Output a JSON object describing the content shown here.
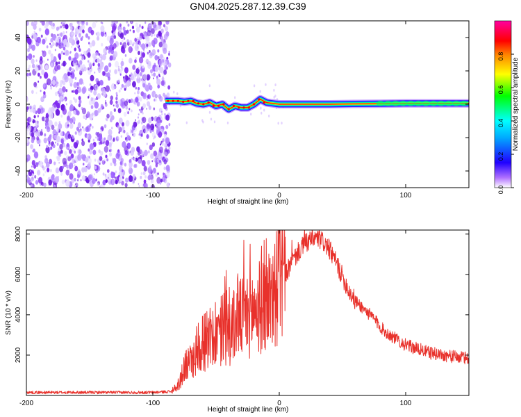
{
  "title": "GN04.2025.287.12.39.C39",
  "chart_data": [
    {
      "type": "heatmap",
      "name": "spectrogram",
      "xlabel": "Height of straight line (km)",
      "ylabel": "Frequency (Hz)",
      "xlim": [
        -200,
        150
      ],
      "ylim": [
        -50,
        50
      ],
      "xticks": [
        -200,
        -100,
        0,
        100
      ],
      "xtick_labels": [
        "-200",
        "-100",
        "0",
        "100"
      ],
      "yticks": [
        40,
        20,
        0,
        -20,
        -40
      ],
      "ytick_labels": [
        "40",
        "20",
        "0",
        "-20",
        "-40"
      ],
      "noise_region_x": [
        -200,
        -90
      ],
      "tone_region_x": [
        -90,
        150
      ],
      "tone_track": [
        [
          -90,
          2
        ],
        [
          -80,
          2
        ],
        [
          -75,
          1.5
        ],
        [
          -70,
          2
        ],
        [
          -65,
          0.5
        ],
        [
          -60,
          0
        ],
        [
          -55,
          1
        ],
        [
          -50,
          -1
        ],
        [
          -45,
          0
        ],
        [
          -40,
          -3
        ],
        [
          -35,
          -1
        ],
        [
          -30,
          -2
        ],
        [
          -25,
          -2
        ],
        [
          -20,
          0
        ],
        [
          -15,
          3
        ],
        [
          -10,
          1
        ],
        [
          -5,
          0.5
        ],
        [
          0,
          0
        ],
        [
          20,
          0
        ],
        [
          40,
          0
        ],
        [
          60,
          0.2
        ],
        [
          80,
          0.3
        ],
        [
          100,
          0.5
        ],
        [
          120,
          0.5
        ],
        [
          150,
          0.5
        ]
      ],
      "colorbar": {
        "label": "Normalized spectral amplitude",
        "range": [
          0,
          1
        ],
        "ticks": [
          0.0,
          0.2,
          0.4,
          0.6,
          0.8
        ],
        "tick_labels": [
          "0.0",
          "0.2",
          "0.4",
          "0.6",
          "0.8"
        ]
      }
    },
    {
      "type": "line",
      "name": "snr",
      "xlabel": "Height of straight line (km)",
      "ylabel": "SNR (10 * v/v)",
      "xlim": [
        -200,
        150
      ],
      "ylim": [
        0,
        8200
      ],
      "xticks": [
        -200,
        -100,
        0,
        100
      ],
      "xtick_labels": [
        "-200",
        "-100",
        "0",
        "100"
      ],
      "yticks": [
        2000,
        4000,
        6000,
        8000
      ],
      "ytick_labels": [
        "2000",
        "4000",
        "6000",
        "8000"
      ],
      "color": "#e8312b",
      "envelope": [
        [
          -200,
          150
        ],
        [
          -100,
          150
        ],
        [
          -85,
          200
        ],
        [
          -80,
          500
        ],
        [
          -75,
          1200
        ],
        [
          -70,
          1700
        ],
        [
          -65,
          2100
        ],
        [
          -60,
          2400
        ],
        [
          -55,
          2600
        ],
        [
          -50,
          2800
        ],
        [
          -45,
          3000
        ],
        [
          -40,
          3200
        ],
        [
          -35,
          3500
        ],
        [
          -30,
          3800
        ],
        [
          -25,
          4000
        ],
        [
          -20,
          4200
        ],
        [
          -15,
          4400
        ],
        [
          -10,
          4700
        ],
        [
          -5,
          5100
        ],
        [
          0,
          5500
        ],
        [
          5,
          6000
        ],
        [
          10,
          6600
        ],
        [
          15,
          7100
        ],
        [
          20,
          7500
        ],
        [
          25,
          7700
        ],
        [
          30,
          7800
        ],
        [
          35,
          7600
        ],
        [
          40,
          7200
        ],
        [
          45,
          6600
        ],
        [
          50,
          5900
        ],
        [
          55,
          5200
        ],
        [
          60,
          4700
        ],
        [
          65,
          4400
        ],
        [
          70,
          4100
        ],
        [
          75,
          3800
        ],
        [
          80,
          3400
        ],
        [
          85,
          3100
        ],
        [
          90,
          2900
        ],
        [
          95,
          2700
        ],
        [
          100,
          2500
        ],
        [
          110,
          2300
        ],
        [
          120,
          2100
        ],
        [
          130,
          2000
        ],
        [
          140,
          1900
        ],
        [
          150,
          1850
        ]
      ],
      "spikes": [
        [
          -55,
          3700
        ],
        [
          -48,
          4000
        ],
        [
          -43,
          5900
        ],
        [
          -42,
          6200
        ],
        [
          -33,
          5800
        ],
        [
          -28,
          7700
        ],
        [
          -23,
          7500
        ],
        [
          -17,
          5700
        ],
        [
          -12,
          7700
        ],
        [
          -6,
          6500
        ],
        [
          3,
          7300
        ],
        [
          10,
          7700
        ],
        [
          20,
          8200
        ]
      ]
    }
  ]
}
